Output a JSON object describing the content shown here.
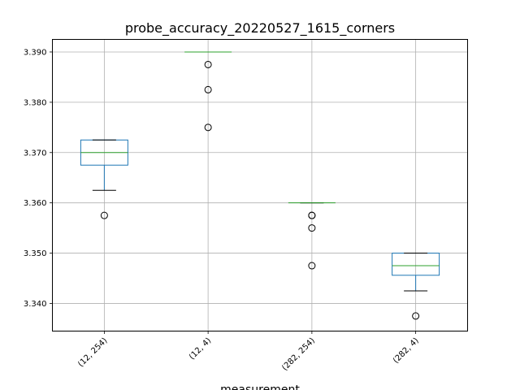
{
  "chart_data": {
    "type": "box",
    "title": "probe_accuracy_20220527_1615_corners",
    "xlabel": "measurement",
    "ylabel": "",
    "categories": [
      "(12, 254)",
      "(12, 4)",
      "(282, 254)",
      "(282, 4)"
    ],
    "ylim": [
      3.3345,
      3.3925
    ],
    "yticks": [
      3.34,
      3.35,
      3.36,
      3.37,
      3.38,
      3.39
    ],
    "ytick_labels": [
      "3.340",
      "3.350",
      "3.360",
      "3.370",
      "3.380",
      "3.390"
    ],
    "grid": true,
    "boxes": [
      {
        "category": "(12, 254)",
        "whisker_low": 3.3625,
        "q1": 3.3675,
        "median": 3.37,
        "q3": 3.3725,
        "whisker_high": 3.3725,
        "fliers": [
          3.3575
        ]
      },
      {
        "category": "(12, 4)",
        "whisker_low": 3.39,
        "q1": 3.39,
        "median": 3.39,
        "q3": 3.39,
        "whisker_high": 3.39,
        "fliers": [
          3.3875,
          3.3825,
          3.375
        ]
      },
      {
        "category": "(282, 254)",
        "whisker_low": 3.36,
        "q1": 3.36,
        "median": 3.36,
        "q3": 3.36,
        "whisker_high": 3.36,
        "fliers": [
          3.3575,
          3.3575,
          3.355,
          3.3475
        ]
      },
      {
        "category": "(282, 4)",
        "whisker_low": 3.3425,
        "q1": 3.3456,
        "median": 3.3475,
        "q3": 3.35,
        "whisker_high": 3.35,
        "fliers": [
          3.3375
        ]
      }
    ],
    "colors": {
      "box": "#1f77b4",
      "median": "#2ca02c",
      "whisker": "#000000",
      "grid": "#b0b0b0"
    }
  }
}
